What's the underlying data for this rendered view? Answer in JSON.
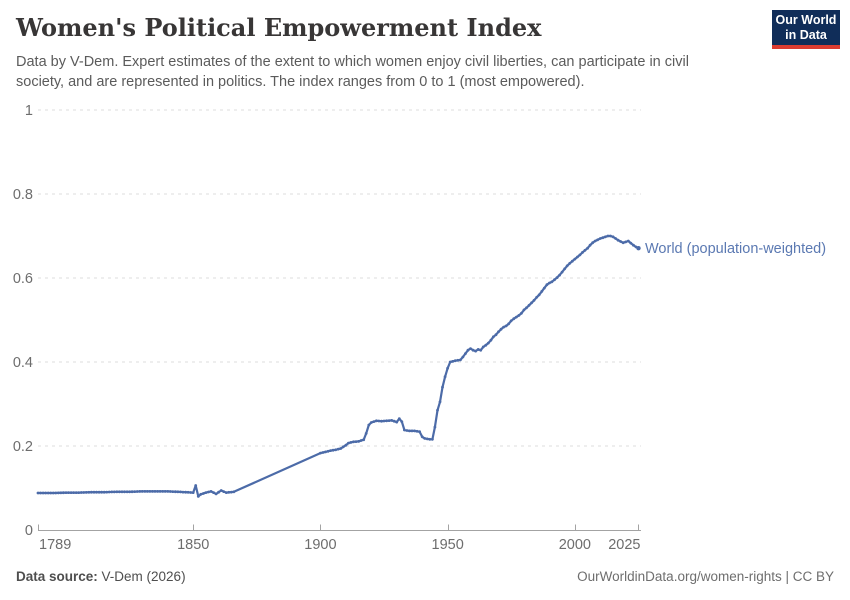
{
  "header": {
    "title": "Women's Political Empowerment Index",
    "subtitle": "Data by V-Dem. Expert estimates of the extent to which women enjoy civil liberties, can participate in civil society, and are represented in politics. The index ranges from 0 to 1 (most empowered).",
    "logo": {
      "line1": "Our World",
      "line2": "in Data",
      "bg_color": "#102d59",
      "accent_color": "#dc3c31"
    }
  },
  "chart_data": {
    "type": "line",
    "title": "Women's Political Empowerment Index",
    "xlabel": "",
    "ylabel": "",
    "xlim": [
      1789,
      2026
    ],
    "ylim": [
      0,
      1
    ],
    "x_ticks": [
      1789,
      1850,
      1900,
      1950,
      2000,
      2025
    ],
    "y_ticks": [
      0,
      0.2,
      0.4,
      0.6,
      0.8,
      1
    ],
    "grid": "horizontal-dashed",
    "grid_color": "#dedede",
    "axis_color": "#a3a3a3",
    "line_color": "#4c6ba8",
    "label_color": "#5b79b2",
    "legend_position": "end-of-line",
    "interpolated_gap_no_markers": [
      1867,
      1899
    ],
    "series": [
      {
        "name": "World (population-weighted)",
        "points": [
          [
            1789,
            0.088
          ],
          [
            1795,
            0.088
          ],
          [
            1800,
            0.089
          ],
          [
            1805,
            0.089
          ],
          [
            1810,
            0.09
          ],
          [
            1815,
            0.09
          ],
          [
            1820,
            0.091
          ],
          [
            1825,
            0.091
          ],
          [
            1830,
            0.092
          ],
          [
            1835,
            0.092
          ],
          [
            1840,
            0.092
          ],
          [
            1844,
            0.091
          ],
          [
            1847,
            0.09
          ],
          [
            1850,
            0.089
          ],
          [
            1851,
            0.106
          ],
          [
            1852,
            0.08
          ],
          [
            1853,
            0.085
          ],
          [
            1855,
            0.089
          ],
          [
            1857,
            0.092
          ],
          [
            1859,
            0.086
          ],
          [
            1861,
            0.094
          ],
          [
            1863,
            0.089
          ],
          [
            1866,
            0.091
          ],
          [
            1900,
            0.183
          ],
          [
            1902,
            0.186
          ],
          [
            1904,
            0.189
          ],
          [
            1906,
            0.191
          ],
          [
            1908,
            0.194
          ],
          [
            1910,
            0.202
          ],
          [
            1911,
            0.207
          ],
          [
            1913,
            0.21
          ],
          [
            1915,
            0.211
          ],
          [
            1917,
            0.215
          ],
          [
            1918,
            0.23
          ],
          [
            1919,
            0.25
          ],
          [
            1920,
            0.256
          ],
          [
            1922,
            0.26
          ],
          [
            1924,
            0.259
          ],
          [
            1926,
            0.26
          ],
          [
            1928,
            0.261
          ],
          [
            1930,
            0.257
          ],
          [
            1931,
            0.265
          ],
          [
            1932,
            0.258
          ],
          [
            1933,
            0.238
          ],
          [
            1935,
            0.236
          ],
          [
            1937,
            0.236
          ],
          [
            1939,
            0.234
          ],
          [
            1940,
            0.222
          ],
          [
            1941,
            0.218
          ],
          [
            1943,
            0.216
          ],
          [
            1944,
            0.216
          ],
          [
            1945,
            0.245
          ],
          [
            1946,
            0.285
          ],
          [
            1947,
            0.305
          ],
          [
            1948,
            0.34
          ],
          [
            1949,
            0.365
          ],
          [
            1950,
            0.385
          ],
          [
            1951,
            0.4
          ],
          [
            1953,
            0.403
          ],
          [
            1955,
            0.405
          ],
          [
            1956,
            0.412
          ],
          [
            1957,
            0.42
          ],
          [
            1958,
            0.428
          ],
          [
            1959,
            0.432
          ],
          [
            1960,
            0.428
          ],
          [
            1961,
            0.426
          ],
          [
            1962,
            0.43
          ],
          [
            1963,
            0.428
          ],
          [
            1964,
            0.436
          ],
          [
            1965,
            0.44
          ],
          [
            1966,
            0.445
          ],
          [
            1967,
            0.452
          ],
          [
            1968,
            0.46
          ],
          [
            1969,
            0.465
          ],
          [
            1970,
            0.472
          ],
          [
            1971,
            0.478
          ],
          [
            1972,
            0.483
          ],
          [
            1973,
            0.486
          ],
          [
            1974,
            0.491
          ],
          [
            1975,
            0.498
          ],
          [
            1976,
            0.503
          ],
          [
            1977,
            0.507
          ],
          [
            1978,
            0.511
          ],
          [
            1979,
            0.516
          ],
          [
            1980,
            0.524
          ],
          [
            1981,
            0.529
          ],
          [
            1982,
            0.535
          ],
          [
            1983,
            0.541
          ],
          [
            1984,
            0.547
          ],
          [
            1985,
            0.554
          ],
          [
            1986,
            0.56
          ],
          [
            1987,
            0.568
          ],
          [
            1988,
            0.576
          ],
          [
            1989,
            0.584
          ],
          [
            1990,
            0.588
          ],
          [
            1991,
            0.591
          ],
          [
            1992,
            0.596
          ],
          [
            1993,
            0.601
          ],
          [
            1994,
            0.607
          ],
          [
            1995,
            0.614
          ],
          [
            1996,
            0.622
          ],
          [
            1997,
            0.629
          ],
          [
            1998,
            0.635
          ],
          [
            1999,
            0.64
          ],
          [
            2000,
            0.645
          ],
          [
            2001,
            0.65
          ],
          [
            2002,
            0.655
          ],
          [
            2003,
            0.661
          ],
          [
            2004,
            0.666
          ],
          [
            2005,
            0.671
          ],
          [
            2006,
            0.678
          ],
          [
            2007,
            0.684
          ],
          [
            2008,
            0.688
          ],
          [
            2009,
            0.691
          ],
          [
            2010,
            0.694
          ],
          [
            2011,
            0.696
          ],
          [
            2012,
            0.698
          ],
          [
            2013,
            0.7
          ],
          [
            2014,
            0.7
          ],
          [
            2015,
            0.698
          ],
          [
            2016,
            0.694
          ],
          [
            2017,
            0.69
          ],
          [
            2018,
            0.687
          ],
          [
            2019,
            0.684
          ],
          [
            2020,
            0.686
          ],
          [
            2021,
            0.688
          ],
          [
            2022,
            0.683
          ],
          [
            2023,
            0.678
          ],
          [
            2024,
            0.674
          ],
          [
            2025,
            0.671
          ]
        ]
      }
    ]
  },
  "footer": {
    "source_label": "Data source:",
    "source_value": " V-Dem (2026)",
    "link": "OurWorldinData.org/women-rights | CC BY"
  }
}
